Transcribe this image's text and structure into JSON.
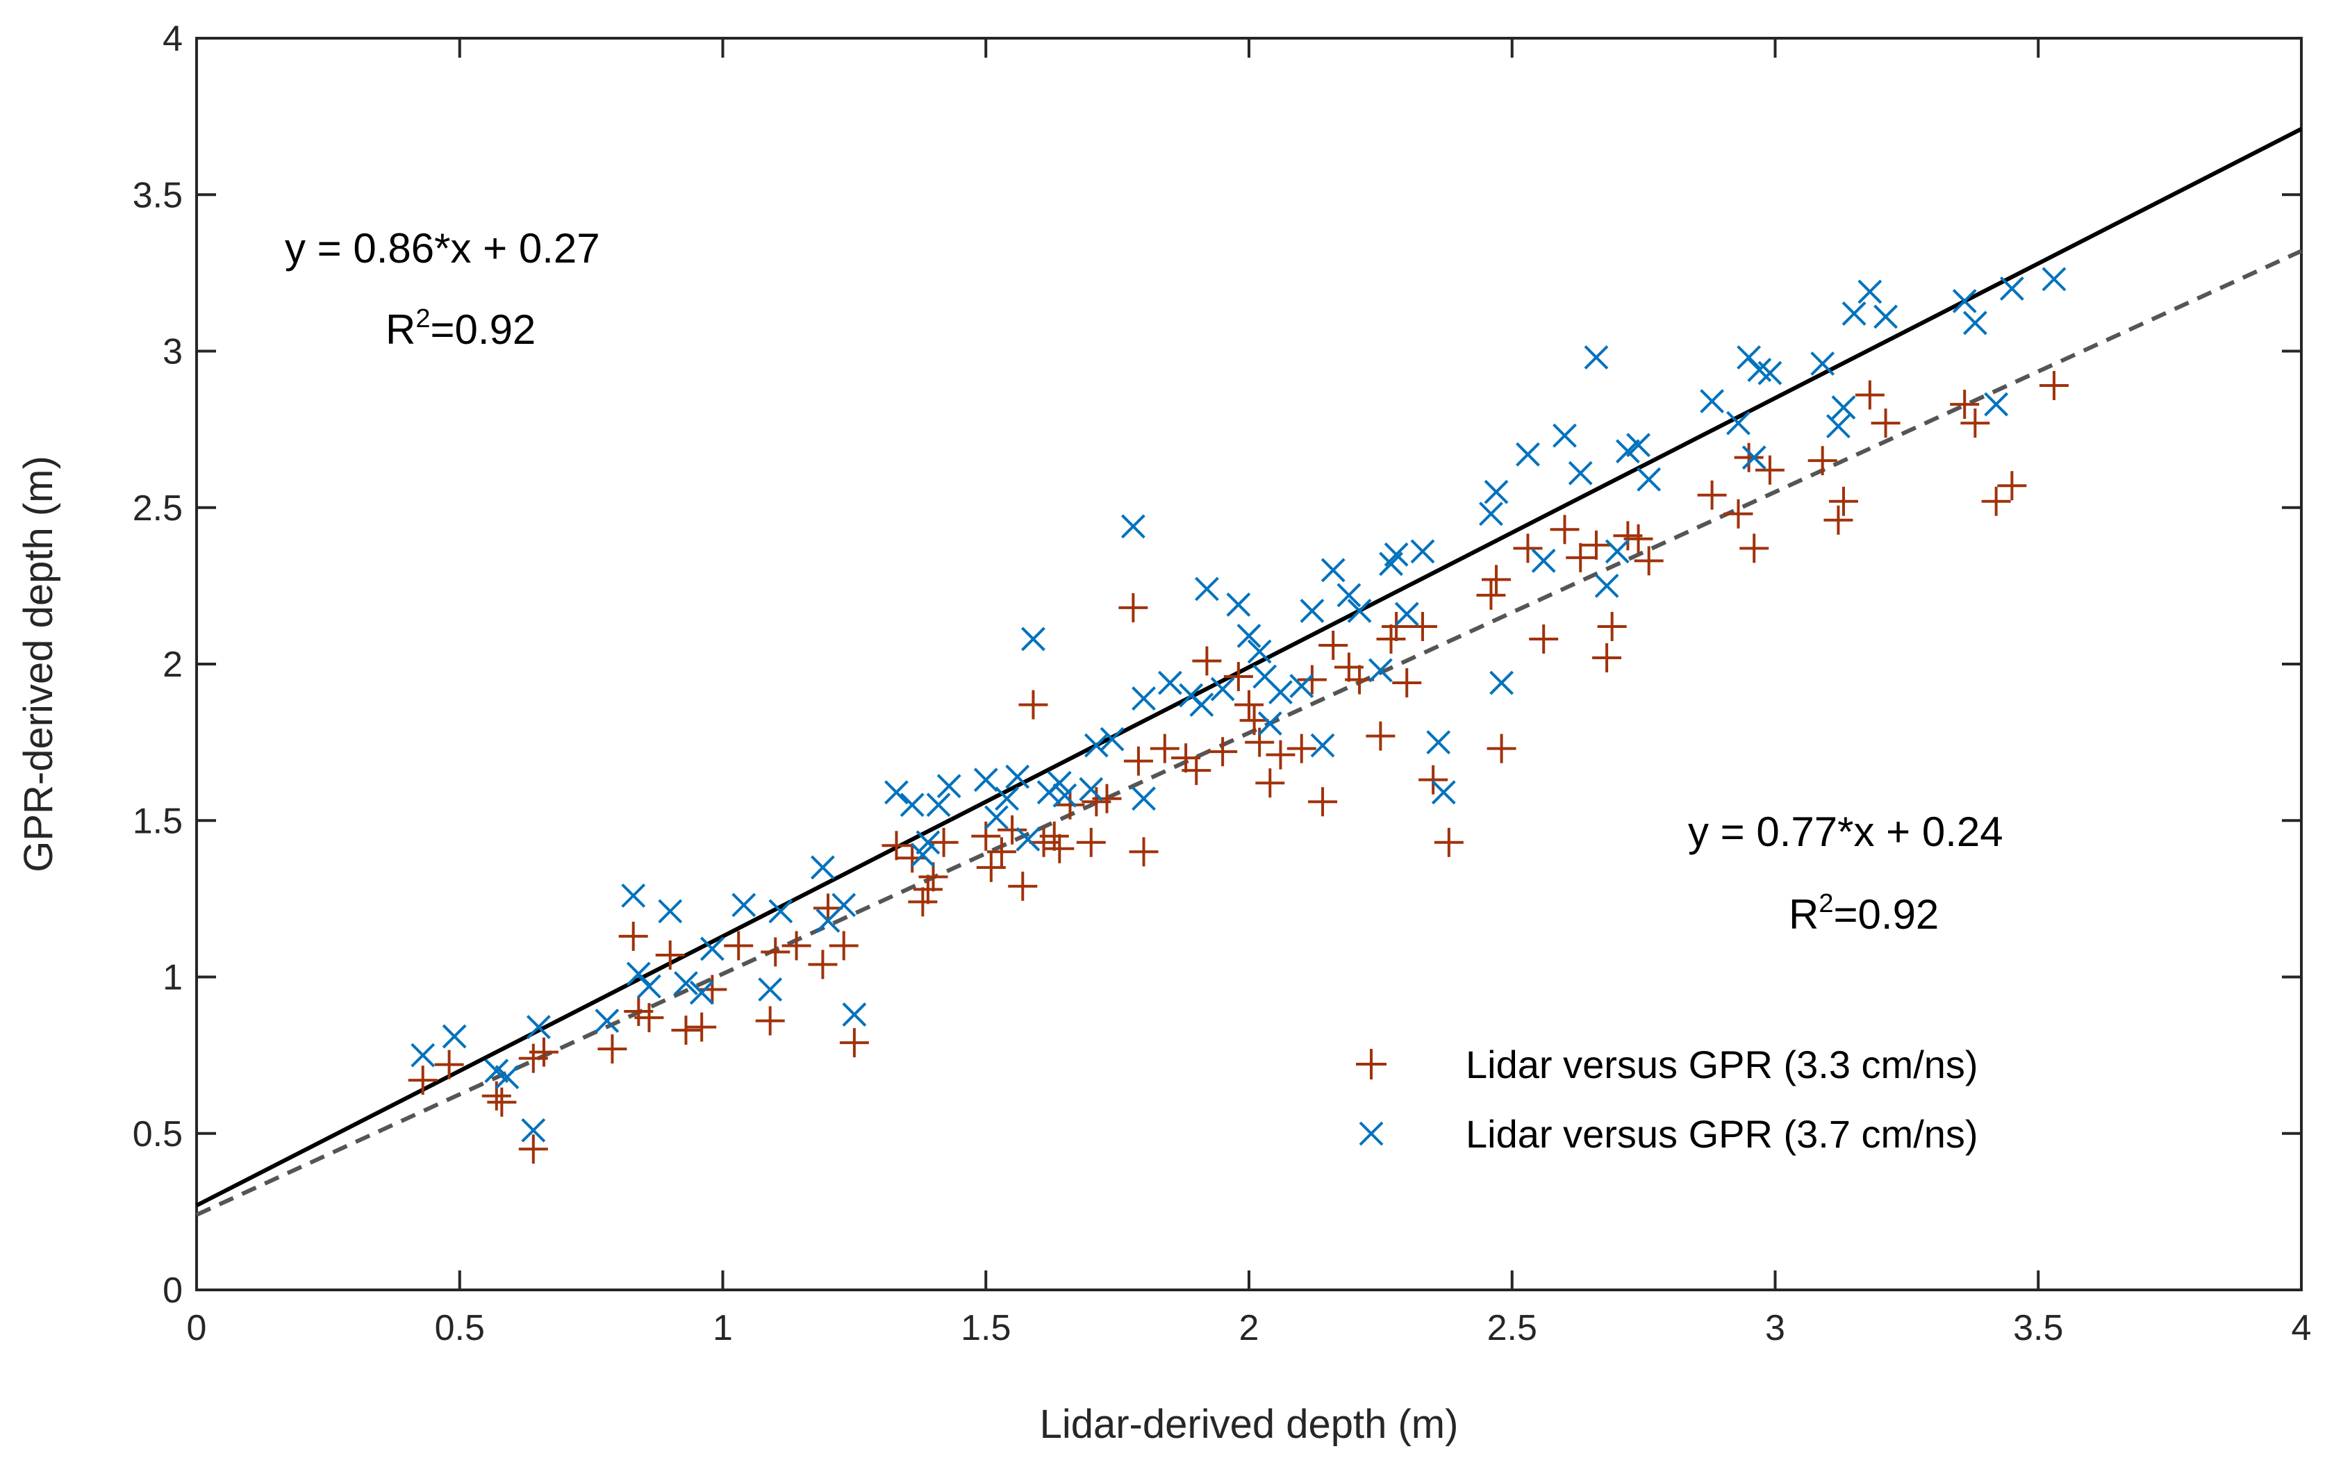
{
  "chart_data": {
    "type": "scatter",
    "title": "",
    "xlabel": "Lidar-derived depth (m)",
    "ylabel": "GPR-derived depth (m)",
    "xlim": [
      0,
      4
    ],
    "ylim": [
      0,
      4
    ],
    "xticks": [
      "0",
      "0.5",
      "1",
      "1.5",
      "2",
      "2.5",
      "3",
      "3.5",
      "4"
    ],
    "yticks": [
      "0",
      "0.5",
      "1",
      "1.5",
      "2",
      "2.5",
      "3",
      "3.5",
      "4"
    ],
    "grid": false,
    "legend_position": "bottom-right",
    "series": [
      {
        "name": "Lidar versus GPR (3.3 cm/ns)",
        "marker": "plus",
        "color": "#A0320A",
        "points": [
          [
            0.43,
            0.67
          ],
          [
            0.48,
            0.72
          ],
          [
            0.57,
            0.62
          ],
          [
            0.58,
            0.6
          ],
          [
            0.64,
            0.45
          ],
          [
            0.64,
            0.74
          ],
          [
            0.66,
            0.76
          ],
          [
            0.79,
            0.77
          ],
          [
            0.83,
            1.13
          ],
          [
            0.84,
            0.89
          ],
          [
            0.86,
            0.87
          ],
          [
            0.9,
            1.07
          ],
          [
            0.93,
            0.83
          ],
          [
            0.96,
            0.84
          ],
          [
            0.98,
            0.96
          ],
          [
            1.03,
            1.1
          ],
          [
            1.09,
            0.86
          ],
          [
            1.1,
            1.08
          ],
          [
            1.14,
            1.1
          ],
          [
            1.19,
            1.04
          ],
          [
            1.2,
            1.22
          ],
          [
            1.23,
            1.1
          ],
          [
            1.25,
            0.79
          ],
          [
            1.33,
            1.42
          ],
          [
            1.36,
            1.38
          ],
          [
            1.38,
            1.24
          ],
          [
            1.39,
            1.28
          ],
          [
            1.4,
            1.32
          ],
          [
            1.42,
            1.43
          ],
          [
            1.5,
            1.45
          ],
          [
            1.51,
            1.35
          ],
          [
            1.53,
            1.4
          ],
          [
            1.55,
            1.47
          ],
          [
            1.57,
            1.29
          ],
          [
            1.59,
            1.87
          ],
          [
            1.61,
            1.43
          ],
          [
            1.63,
            1.45
          ],
          [
            1.64,
            1.41
          ],
          [
            1.66,
            1.55
          ],
          [
            1.7,
            1.43
          ],
          [
            1.71,
            1.56
          ],
          [
            1.73,
            1.57
          ],
          [
            1.78,
            2.18
          ],
          [
            1.79,
            1.69
          ],
          [
            1.8,
            1.4
          ],
          [
            1.84,
            1.73
          ],
          [
            1.88,
            1.7
          ],
          [
            1.9,
            1.66
          ],
          [
            1.92,
            2.01
          ],
          [
            1.95,
            1.72
          ],
          [
            1.98,
            1.96
          ],
          [
            2.0,
            1.87
          ],
          [
            2.01,
            1.82
          ],
          [
            2.02,
            1.75
          ],
          [
            2.04,
            1.62
          ],
          [
            2.06,
            1.71
          ],
          [
            2.1,
            1.73
          ],
          [
            2.12,
            1.95
          ],
          [
            2.14,
            1.56
          ],
          [
            2.16,
            2.06
          ],
          [
            2.19,
            1.99
          ],
          [
            2.21,
            1.95
          ],
          [
            2.25,
            1.77
          ],
          [
            2.27,
            2.08
          ],
          [
            2.28,
            2.12
          ],
          [
            2.3,
            1.94
          ],
          [
            2.33,
            2.12
          ],
          [
            2.35,
            1.63
          ],
          [
            2.38,
            1.43
          ],
          [
            2.46,
            2.22
          ],
          [
            2.47,
            2.27
          ],
          [
            2.48,
            1.73
          ],
          [
            2.53,
            2.37
          ],
          [
            2.56,
            2.08
          ],
          [
            2.6,
            2.43
          ],
          [
            2.63,
            2.34
          ],
          [
            2.66,
            2.38
          ],
          [
            2.68,
            2.02
          ],
          [
            2.69,
            2.12
          ],
          [
            2.72,
            2.41
          ],
          [
            2.74,
            2.4
          ],
          [
            2.76,
            2.33
          ],
          [
            2.88,
            2.54
          ],
          [
            2.93,
            2.48
          ],
          [
            2.95,
            2.66
          ],
          [
            2.96,
            2.37
          ],
          [
            2.99,
            2.62
          ],
          [
            3.09,
            2.65
          ],
          [
            3.12,
            2.46
          ],
          [
            3.13,
            2.52
          ],
          [
            3.18,
            2.86
          ],
          [
            3.21,
            2.77
          ],
          [
            3.36,
            2.83
          ],
          [
            3.38,
            2.77
          ],
          [
            3.42,
            2.52
          ],
          [
            3.45,
            2.57
          ],
          [
            3.53,
            2.89
          ]
        ]
      },
      {
        "name": "Lidar versus GPR (3.7 cm/ns)",
        "marker": "cross",
        "color": "#0072BD",
        "points": [
          [
            0.43,
            0.75
          ],
          [
            0.49,
            0.81
          ],
          [
            0.57,
            0.7
          ],
          [
            0.59,
            0.68
          ],
          [
            0.64,
            0.51
          ],
          [
            0.65,
            0.84
          ],
          [
            0.78,
            0.86
          ],
          [
            0.83,
            1.26
          ],
          [
            0.84,
            1.01
          ],
          [
            0.86,
            0.97
          ],
          [
            0.9,
            1.21
          ],
          [
            0.93,
            0.98
          ],
          [
            0.96,
            0.95
          ],
          [
            0.98,
            1.09
          ],
          [
            1.04,
            1.23
          ],
          [
            1.09,
            0.96
          ],
          [
            1.11,
            1.21
          ],
          [
            1.19,
            1.35
          ],
          [
            1.2,
            1.18
          ],
          [
            1.23,
            1.23
          ],
          [
            1.25,
            0.88
          ],
          [
            1.33,
            1.59
          ],
          [
            1.36,
            1.55
          ],
          [
            1.38,
            1.39
          ],
          [
            1.39,
            1.43
          ],
          [
            1.41,
            1.55
          ],
          [
            1.43,
            1.61
          ],
          [
            1.5,
            1.63
          ],
          [
            1.52,
            1.51
          ],
          [
            1.54,
            1.57
          ],
          [
            1.56,
            1.64
          ],
          [
            1.58,
            1.44
          ],
          [
            1.59,
            2.08
          ],
          [
            1.62,
            1.59
          ],
          [
            1.64,
            1.62
          ],
          [
            1.65,
            1.58
          ],
          [
            1.7,
            1.6
          ],
          [
            1.71,
            1.74
          ],
          [
            1.74,
            1.76
          ],
          [
            1.78,
            2.44
          ],
          [
            1.8,
            1.89
          ],
          [
            1.8,
            1.57
          ],
          [
            1.85,
            1.94
          ],
          [
            1.89,
            1.9
          ],
          [
            1.91,
            1.87
          ],
          [
            1.92,
            2.24
          ],
          [
            1.95,
            1.92
          ],
          [
            1.98,
            2.19
          ],
          [
            2.0,
            2.09
          ],
          [
            2.02,
            2.04
          ],
          [
            2.03,
            1.96
          ],
          [
            2.04,
            1.81
          ],
          [
            2.06,
            1.91
          ],
          [
            2.1,
            1.93
          ],
          [
            2.12,
            2.17
          ],
          [
            2.14,
            1.74
          ],
          [
            2.16,
            2.3
          ],
          [
            2.19,
            2.22
          ],
          [
            2.21,
            2.17
          ],
          [
            2.25,
            1.98
          ],
          [
            2.27,
            2.32
          ],
          [
            2.28,
            2.35
          ],
          [
            2.3,
            2.16
          ],
          [
            2.33,
            2.36
          ],
          [
            2.36,
            1.75
          ],
          [
            2.37,
            1.59
          ],
          [
            2.46,
            2.48
          ],
          [
            2.47,
            2.55
          ],
          [
            2.48,
            1.94
          ],
          [
            2.53,
            2.67
          ],
          [
            2.56,
            2.33
          ],
          [
            2.6,
            2.73
          ],
          [
            2.63,
            2.61
          ],
          [
            2.66,
            2.98
          ],
          [
            2.68,
            2.25
          ],
          [
            2.7,
            2.36
          ],
          [
            2.72,
            2.68
          ],
          [
            2.74,
            2.7
          ],
          [
            2.76,
            2.59
          ],
          [
            2.88,
            2.84
          ],
          [
            2.93,
            2.77
          ],
          [
            2.95,
            2.98
          ],
          [
            2.96,
            2.66
          ],
          [
            2.99,
            2.93
          ],
          [
            3.09,
            2.96
          ],
          [
            3.12,
            2.76
          ],
          [
            3.13,
            2.82
          ],
          [
            3.18,
            3.19
          ],
          [
            3.21,
            3.11
          ],
          [
            3.36,
            3.16
          ],
          [
            3.38,
            3.09
          ],
          [
            3.42,
            2.83
          ],
          [
            3.45,
            3.2
          ],
          [
            3.53,
            3.23
          ],
          [
            3.15,
            3.12
          ],
          [
            2.97,
            2.94
          ]
        ]
      }
    ],
    "fit_lines": [
      {
        "name": "fit-3.7",
        "slope": 0.86,
        "intercept": 0.27,
        "style": "solid",
        "color": "#000000",
        "equation": "y = 0.86*x + 0.27",
        "r2_value": "=0.92"
      },
      {
        "name": "fit-3.3",
        "slope": 0.77,
        "intercept": 0.24,
        "style": "dashed",
        "color": "#555555",
        "equation": "y = 0.77*x + 0.24",
        "r2_value": "=0.92"
      }
    ],
    "r2_prefix": "R",
    "r2_exponent": "2"
  }
}
